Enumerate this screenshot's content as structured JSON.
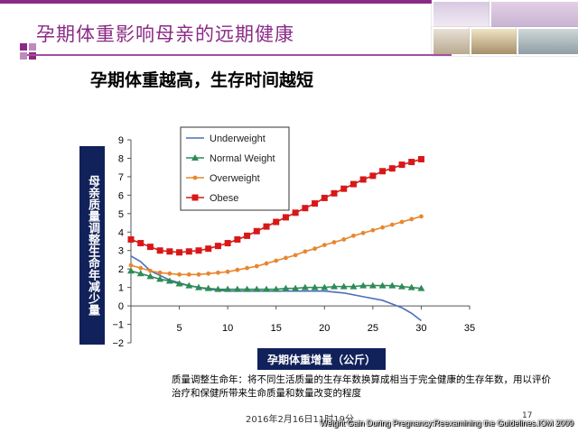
{
  "title": "孕期体重影响母亲的远期健康",
  "subtitle": "孕期体重越高，生存时间越短",
  "note": "质量调整生命年：将不同生活质量的生存年数换算成相当于完全健康的生存年数，用以评价治疗和保健所带来生命质量和数量改变的程度",
  "date_text": "2016年2月16日11时19分",
  "page_number": "17",
  "source": "Weight Gain During Pregnancy:Reexamining the Guidelines.IOM 2009",
  "chart_data": {
    "type": "line",
    "ylabel": "母亲质量调整生命年减少量",
    "xlabel": "孕期体重增量（公斤）",
    "xlim": [
      0,
      35
    ],
    "ylim": [
      -2,
      9
    ],
    "xticks": [
      5,
      10,
      15,
      20,
      25,
      30,
      35
    ],
    "yticks": [
      -2,
      -1,
      0,
      1,
      2,
      3,
      4,
      5,
      6,
      7,
      8,
      9
    ],
    "legend_position": "top-left",
    "grid": false,
    "series": [
      {
        "name": "Underweight",
        "color": "#4a6fb8",
        "marker": "none",
        "x": [
          0,
          1,
          2,
          4,
          6,
          8,
          10,
          12,
          14,
          16,
          18,
          20,
          22,
          24,
          26,
          27,
          28,
          29,
          30
        ],
        "y": [
          2.7,
          2.4,
          1.9,
          1.4,
          1.1,
          0.9,
          0.8,
          0.8,
          0.8,
          0.8,
          0.8,
          0.8,
          0.7,
          0.5,
          0.3,
          0.1,
          -0.1,
          -0.4,
          -0.8
        ]
      },
      {
        "name": "Normal Weight",
        "color": "#2e8b57",
        "marker": "triangle",
        "x": [
          0,
          1,
          2,
          3,
          4,
          5,
          6,
          7,
          8,
          9,
          10,
          11,
          12,
          13,
          14,
          15,
          16,
          17,
          18,
          19,
          20,
          21,
          22,
          23,
          24,
          25,
          26,
          27,
          28,
          29,
          30
        ],
        "y": [
          1.9,
          1.75,
          1.6,
          1.45,
          1.35,
          1.2,
          1.1,
          1.0,
          0.95,
          0.9,
          0.9,
          0.9,
          0.9,
          0.9,
          0.9,
          0.9,
          0.95,
          0.95,
          1.0,
          1.0,
          1.0,
          1.05,
          1.05,
          1.05,
          1.1,
          1.1,
          1.1,
          1.1,
          1.05,
          1.0,
          0.95
        ]
      },
      {
        "name": "Overweight",
        "color": "#e8872e",
        "marker": "circle",
        "x": [
          0,
          1,
          2,
          3,
          4,
          5,
          6,
          7,
          8,
          9,
          10,
          11,
          12,
          13,
          14,
          15,
          16,
          17,
          18,
          19,
          20,
          21,
          22,
          23,
          24,
          25,
          26,
          27,
          28,
          29,
          30
        ],
        "y": [
          2.2,
          2.05,
          1.9,
          1.8,
          1.75,
          1.7,
          1.7,
          1.7,
          1.75,
          1.8,
          1.85,
          1.95,
          2.05,
          2.15,
          2.3,
          2.45,
          2.6,
          2.75,
          2.95,
          3.1,
          3.3,
          3.45,
          3.6,
          3.8,
          3.95,
          4.1,
          4.25,
          4.4,
          4.55,
          4.7,
          4.85
        ]
      },
      {
        "name": "Obese",
        "color": "#d81818",
        "marker": "square",
        "x": [
          0,
          1,
          2,
          3,
          4,
          5,
          6,
          7,
          8,
          9,
          10,
          11,
          12,
          13,
          14,
          15,
          16,
          17,
          18,
          19,
          20,
          21,
          22,
          23,
          24,
          25,
          26,
          27,
          28,
          29,
          30
        ],
        "y": [
          3.6,
          3.4,
          3.2,
          3.0,
          2.95,
          2.9,
          2.95,
          3.0,
          3.1,
          3.25,
          3.4,
          3.6,
          3.8,
          4.05,
          4.3,
          4.55,
          4.8,
          5.05,
          5.3,
          5.55,
          5.85,
          6.1,
          6.35,
          6.6,
          6.85,
          7.05,
          7.3,
          7.45,
          7.65,
          7.8,
          7.95
        ]
      }
    ]
  }
}
